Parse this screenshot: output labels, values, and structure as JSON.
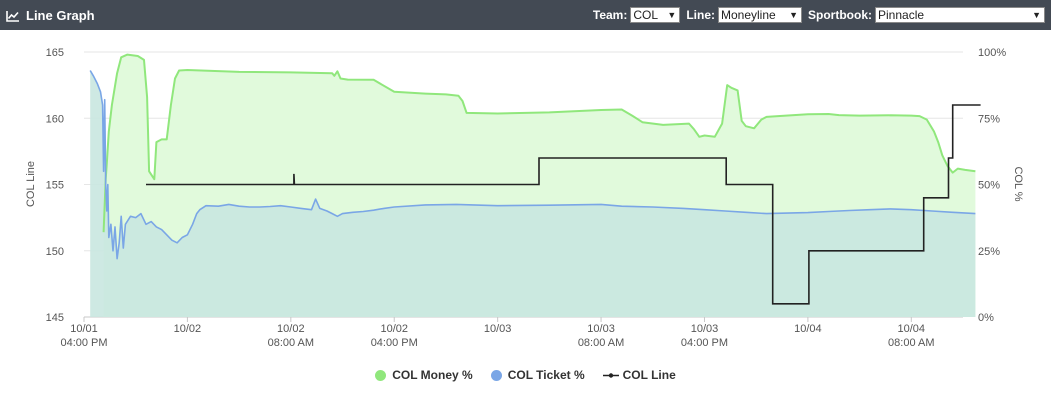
{
  "header": {
    "title": "Line Graph",
    "team_label": "Team:",
    "team_value": "COL",
    "line_label": "Line:",
    "line_value": "Moneyline",
    "sportsbook_label": "Sportbook:",
    "sportsbook_value": "Pinnacle"
  },
  "colors": {
    "header_bg": "#434a54",
    "money": "#90e77c",
    "money_fill": "#e1fadc",
    "ticket": "#7aa6e6",
    "ticket_fill": "#c9e7e0",
    "line": "#222222"
  },
  "chart_data": {
    "type": "line",
    "xlabel": "",
    "ylabel_left": "COL Line",
    "ylabel_right": "COL %",
    "ylim_left": [
      145,
      165
    ],
    "ylim_right": [
      0,
      100
    ],
    "xlim": [
      0,
      85
    ],
    "grid": true,
    "legend_position": "bottom-center",
    "y_ticks_left": [
      "145",
      "150",
      "155",
      "160",
      "165"
    ],
    "y_ticks_right": [
      "0%",
      "25%",
      "50%",
      "75%",
      "100%"
    ],
    "x_ticks": [
      {
        "x": 0,
        "line1": "10/01",
        "line2": "04:00 PM"
      },
      {
        "x": 10,
        "line1": "10/02",
        "line2": ""
      },
      {
        "x": 20,
        "line1": "10/02",
        "line2": "08:00 AM"
      },
      {
        "x": 30,
        "line1": "10/02",
        "line2": "04:00 PM"
      },
      {
        "x": 40,
        "line1": "10/03",
        "line2": ""
      },
      {
        "x": 50,
        "line1": "10/03",
        "line2": "08:00 AM"
      },
      {
        "x": 60,
        "line1": "10/03",
        "line2": "04:00 PM"
      },
      {
        "x": 70,
        "line1": "10/04",
        "line2": ""
      },
      {
        "x": 80,
        "line1": "10/04",
        "line2": "08:00 AM"
      }
    ],
    "series": [
      {
        "name": "COL Money %",
        "axis": "right",
        "points": [
          [
            1.9,
            32
          ],
          [
            2.1,
            52
          ],
          [
            2.2,
            58
          ],
          [
            2.4,
            70
          ],
          [
            2.7,
            80
          ],
          [
            3.2,
            92
          ],
          [
            3.6,
            98
          ],
          [
            4.2,
            99
          ],
          [
            5.2,
            98.5
          ],
          [
            5.8,
            97
          ],
          [
            6.1,
            83
          ],
          [
            6.3,
            55
          ],
          [
            6.8,
            52
          ],
          [
            7.0,
            66
          ],
          [
            7.5,
            67
          ],
          [
            8.0,
            67
          ],
          [
            8.4,
            80
          ],
          [
            8.8,
            90
          ],
          [
            9.2,
            93
          ],
          [
            10,
            93.2
          ],
          [
            15,
            92.5
          ],
          [
            20,
            92.3
          ],
          [
            24,
            92
          ],
          [
            24.2,
            91
          ],
          [
            24.5,
            92.7
          ],
          [
            24.8,
            90
          ],
          [
            25.5,
            89.6
          ],
          [
            28,
            89.5
          ],
          [
            30,
            85
          ],
          [
            33,
            84.3
          ],
          [
            35,
            84
          ],
          [
            36.2,
            83.5
          ],
          [
            36.6,
            81.5
          ],
          [
            37,
            77
          ],
          [
            40,
            76.8
          ],
          [
            45,
            77.2
          ],
          [
            50,
            78.1
          ],
          [
            52,
            78.3
          ],
          [
            53,
            76
          ],
          [
            54,
            73.5
          ],
          [
            56,
            72.5
          ],
          [
            58.5,
            73
          ],
          [
            59,
            70.8
          ],
          [
            59.5,
            68
          ],
          [
            60,
            68.5
          ],
          [
            61,
            68
          ],
          [
            61.7,
            73
          ],
          [
            62.2,
            87.5
          ],
          [
            62.6,
            86.5
          ],
          [
            63.2,
            85.5
          ],
          [
            63.6,
            74
          ],
          [
            64,
            72
          ],
          [
            64.8,
            71.2
          ],
          [
            65.5,
            74.5
          ],
          [
            66,
            75.5
          ],
          [
            67.5,
            75.9
          ],
          [
            70,
            76.5
          ],
          [
            72,
            76.6
          ],
          [
            73,
            76.2
          ],
          [
            75,
            76
          ],
          [
            78,
            76.1
          ],
          [
            80,
            76
          ],
          [
            80.8,
            75.8
          ],
          [
            81.5,
            74.5
          ],
          [
            82.2,
            70
          ],
          [
            82.6,
            66
          ],
          [
            83,
            61
          ],
          [
            83.5,
            57
          ],
          [
            84,
            54.5
          ],
          [
            84.5,
            56
          ],
          [
            85.2,
            55.5
          ],
          [
            86.2,
            55
          ]
        ]
      },
      {
        "name": "COL Ticket %",
        "axis": "right",
        "points": [
          [
            0.6,
            93
          ],
          [
            0.9,
            91
          ],
          [
            1.3,
            88
          ],
          [
            1.6,
            85
          ],
          [
            1.8,
            80
          ],
          [
            1.9,
            55
          ],
          [
            2.0,
            82
          ],
          [
            2.1,
            50
          ],
          [
            2.2,
            40
          ],
          [
            2.3,
            50
          ],
          [
            2.4,
            30
          ],
          [
            2.6,
            35
          ],
          [
            2.8,
            25
          ],
          [
            3.0,
            34
          ],
          [
            3.2,
            22
          ],
          [
            3.4,
            28
          ],
          [
            3.6,
            38
          ],
          [
            3.8,
            26
          ],
          [
            4.0,
            35
          ],
          [
            4.5,
            38
          ],
          [
            5,
            37.5
          ],
          [
            5.5,
            39
          ],
          [
            6,
            35
          ],
          [
            6.5,
            36
          ],
          [
            7,
            34
          ],
          [
            7.5,
            33
          ],
          [
            8,
            31
          ],
          [
            8.5,
            29
          ],
          [
            9,
            28
          ],
          [
            9.5,
            30
          ],
          [
            10,
            31
          ],
          [
            10.5,
            35
          ],
          [
            10.9,
            39
          ],
          [
            11.2,
            40.5
          ],
          [
            11.8,
            42
          ],
          [
            13,
            41.8
          ],
          [
            14,
            42.5
          ],
          [
            15,
            41.8
          ],
          [
            16,
            41.5
          ],
          [
            17,
            41.5
          ],
          [
            18,
            41.7
          ],
          [
            19,
            42
          ],
          [
            20,
            41.5
          ],
          [
            21,
            41
          ],
          [
            22,
            40.5
          ],
          [
            22.4,
            44.5
          ],
          [
            22.8,
            41
          ],
          [
            23.5,
            40
          ],
          [
            24,
            39
          ],
          [
            24.5,
            38
          ],
          [
            25,
            39
          ],
          [
            26,
            39.5
          ],
          [
            27,
            39.8
          ],
          [
            28,
            40.3
          ],
          [
            29,
            41
          ],
          [
            30,
            41.5
          ],
          [
            33,
            42.3
          ],
          [
            36,
            42.5
          ],
          [
            40,
            42
          ],
          [
            45,
            42.2
          ],
          [
            50,
            42.5
          ],
          [
            52,
            41.8
          ],
          [
            55,
            41.5
          ],
          [
            58,
            41
          ],
          [
            60,
            40.5
          ],
          [
            62,
            40
          ],
          [
            64,
            39.5
          ],
          [
            66,
            39
          ],
          [
            68,
            39.2
          ],
          [
            70,
            39.4
          ],
          [
            72,
            39.8
          ],
          [
            74,
            40.2
          ],
          [
            76,
            40.5
          ],
          [
            78,
            40.8
          ],
          [
            80,
            40.5
          ],
          [
            82,
            40
          ],
          [
            84,
            39.5
          ],
          [
            86.2,
            39
          ]
        ]
      },
      {
        "name": "COL Line",
        "axis": "left",
        "points": [
          [
            6.0,
            155
          ],
          [
            20.3,
            155
          ],
          [
            20.3,
            155.8
          ],
          [
            20.35,
            155
          ],
          [
            44.0,
            155
          ],
          [
            44.0,
            157
          ],
          [
            62.1,
            157
          ],
          [
            62.1,
            155
          ],
          [
            66.6,
            155
          ],
          [
            66.6,
            146
          ],
          [
            70.1,
            146
          ],
          [
            70.1,
            150
          ],
          [
            81.2,
            150
          ],
          [
            81.2,
            154
          ],
          [
            83.6,
            154
          ],
          [
            83.6,
            157
          ],
          [
            84,
            157
          ],
          [
            84,
            161
          ],
          [
            86.7,
            161
          ]
        ]
      }
    ]
  }
}
